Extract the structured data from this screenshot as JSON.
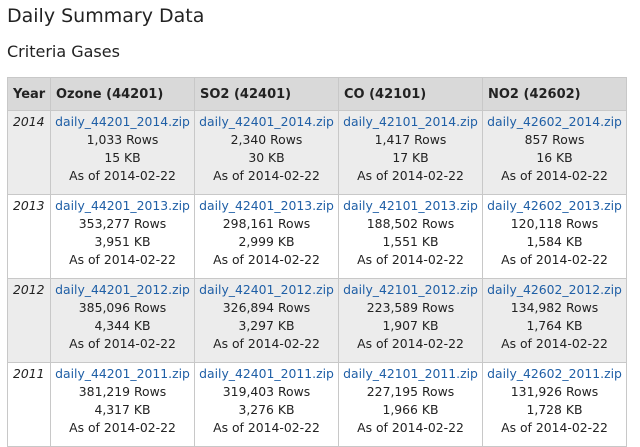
{
  "page": {
    "title": "Daily Summary Data",
    "section_title": "Criteria Gases"
  },
  "colors": {
    "link": "#1f5fa6",
    "header_bg": "#d9d9d9",
    "row_alt_bg": "#ececec",
    "border": "#c8c8c8"
  },
  "table": {
    "headers": [
      "Year",
      "Ozone (44201)",
      "SO2 (42401)",
      "CO (42101)",
      "NO2 (42602)"
    ],
    "rows": [
      {
        "year": "2014",
        "cells": [
          {
            "file": "daily_44201_2014.zip",
            "rows": "1,033 Rows",
            "size": "15 KB",
            "as_of": "As of 2014-02-22"
          },
          {
            "file": "daily_42401_2014.zip",
            "rows": "2,340 Rows",
            "size": "30 KB",
            "as_of": "As of 2014-02-22"
          },
          {
            "file": "daily_42101_2014.zip",
            "rows": "1,417 Rows",
            "size": "17 KB",
            "as_of": "As of 2014-02-22"
          },
          {
            "file": "daily_42602_2014.zip",
            "rows": "857 Rows",
            "size": "16 KB",
            "as_of": "As of 2014-02-22"
          }
        ]
      },
      {
        "year": "2013",
        "cells": [
          {
            "file": "daily_44201_2013.zip",
            "rows": "353,277 Rows",
            "size": "3,951 KB",
            "as_of": "As of 2014-02-22"
          },
          {
            "file": "daily_42401_2013.zip",
            "rows": "298,161 Rows",
            "size": "2,999 KB",
            "as_of": "As of 2014-02-22"
          },
          {
            "file": "daily_42101_2013.zip",
            "rows": "188,502 Rows",
            "size": "1,551 KB",
            "as_of": "As of 2014-02-22"
          },
          {
            "file": "daily_42602_2013.zip",
            "rows": "120,118 Rows",
            "size": "1,584 KB",
            "as_of": "As of 2014-02-22"
          }
        ]
      },
      {
        "year": "2012",
        "cells": [
          {
            "file": "daily_44201_2012.zip",
            "rows": "385,096 Rows",
            "size": "4,344 KB",
            "as_of": "As of 2014-02-22"
          },
          {
            "file": "daily_42401_2012.zip",
            "rows": "326,894 Rows",
            "size": "3,297 KB",
            "as_of": "As of 2014-02-22"
          },
          {
            "file": "daily_42101_2012.zip",
            "rows": "223,589 Rows",
            "size": "1,907 KB",
            "as_of": "As of 2014-02-22"
          },
          {
            "file": "daily_42602_2012.zip",
            "rows": "134,982 Rows",
            "size": "1,764 KB",
            "as_of": "As of 2014-02-22"
          }
        ]
      },
      {
        "year": "2011",
        "cells": [
          {
            "file": "daily_44201_2011.zip",
            "rows": "381,219 Rows",
            "size": "4,317 KB",
            "as_of": "As of 2014-02-22"
          },
          {
            "file": "daily_42401_2011.zip",
            "rows": "319,403 Rows",
            "size": "3,276 KB",
            "as_of": "As of 2014-02-22"
          },
          {
            "file": "daily_42101_2011.zip",
            "rows": "227,195 Rows",
            "size": "1,966 KB",
            "as_of": "As of 2014-02-22"
          },
          {
            "file": "daily_42602_2011.zip",
            "rows": "131,926 Rows",
            "size": "1,728 KB",
            "as_of": "As of 2014-02-22"
          }
        ]
      }
    ]
  }
}
